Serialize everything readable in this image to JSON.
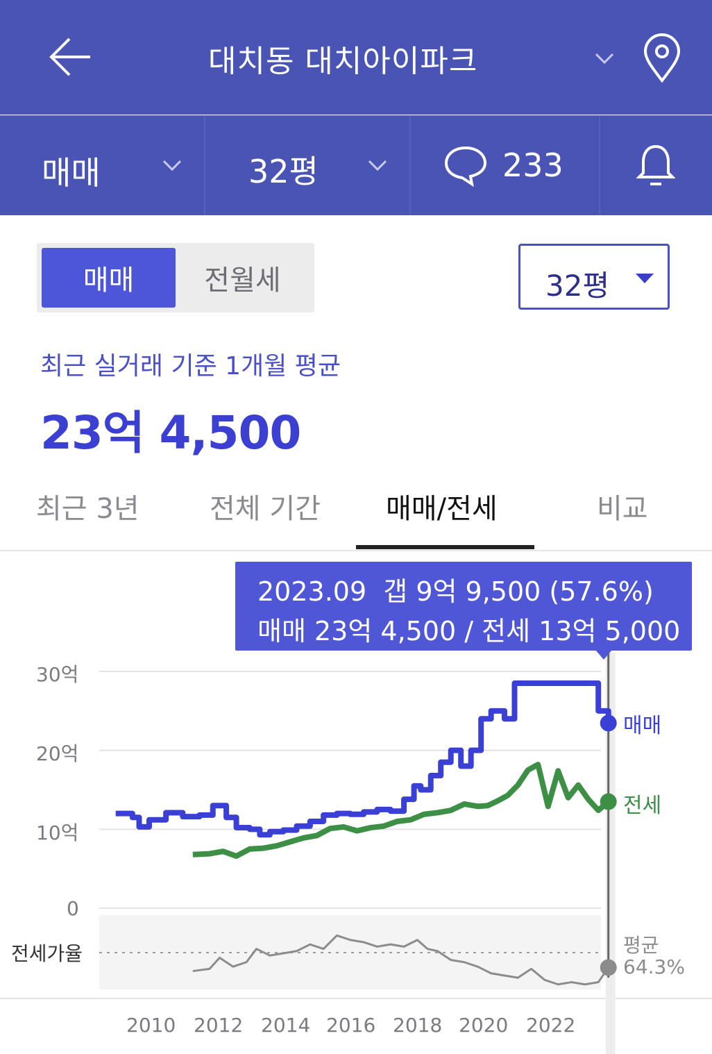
{
  "header": {
    "title": "대치동 대치아이파크",
    "back_icon": "arrow-left-icon",
    "location_icon": "map-pin-icon",
    "dropdown_icon": "chevron-down-icon"
  },
  "subbar": {
    "trade_type": "매매",
    "size": "32평",
    "comment_count": "233",
    "comment_icon": "speech-bubble-icon",
    "alarm_icon": "bell-icon"
  },
  "toggle": {
    "active": "매매",
    "inactive": "전월세"
  },
  "size_select": {
    "value": "32평"
  },
  "summary": {
    "caption": "최근 실거래 기준 1개월 평균",
    "price": "23억 4,500"
  },
  "tabs": [
    {
      "label": "최근 3년"
    },
    {
      "label": "전체 기간"
    },
    {
      "label": "매매/전세"
    },
    {
      "label": "비교"
    }
  ],
  "active_tab": "매매/전세",
  "tooltip": {
    "line1": "2023.09  갭 9억 9,500 (57.6%)",
    "line2": "매매 23억 4,500 / 전세 13억 5,000"
  },
  "colors": {
    "header_bg": "#4a54b4",
    "accent": "#4d55d8",
    "sale_line": "#3a3fd6",
    "jeonse_line": "#3d8f46",
    "ratio_line": "#8c8c8c"
  },
  "chart_data": {
    "type": "line",
    "y_unit": "억",
    "ylim": [
      0,
      30
    ],
    "yticks": [
      "30억",
      "20억",
      "10억",
      "0"
    ],
    "xticks": [
      "2010",
      "2012",
      "2014",
      "2016",
      "2018",
      "2020",
      "2022"
    ],
    "series": [
      {
        "name": "매매",
        "color": "#3a3fd6",
        "x": [
          2009.0,
          2009.5,
          2009.7,
          2010.0,
          2010.5,
          2011.0,
          2011.5,
          2011.9,
          2012.3,
          2012.6,
          2013.0,
          2013.3,
          2013.6,
          2014.0,
          2014.4,
          2014.8,
          2015.2,
          2015.6,
          2016.0,
          2016.4,
          2016.8,
          2017.2,
          2017.6,
          2017.9,
          2018.1,
          2018.4,
          2018.7,
          2019.0,
          2019.3,
          2019.6,
          2019.9,
          2020.2,
          2020.6,
          2020.9,
          2021.3,
          2021.8,
          2022.3,
          2022.8,
          2023.1,
          2023.4,
          2023.7
        ],
        "y": [
          12.0,
          11.5,
          10.3,
          11.2,
          12.1,
          11.6,
          11.8,
          13.0,
          11.5,
          10.2,
          10.0,
          9.3,
          9.7,
          9.9,
          10.4,
          11.0,
          11.8,
          12.0,
          11.9,
          12.2,
          12.5,
          12.3,
          13.8,
          15.5,
          15.0,
          16.8,
          18.5,
          20.0,
          18.0,
          20.0,
          24.0,
          25.0,
          24.0,
          28.5,
          28.5,
          28.5,
          28.5,
          28.5,
          28.5,
          25.0,
          23.45
        ]
      },
      {
        "name": "전세",
        "color": "#3d8f46",
        "x": [
          2011.3,
          2011.8,
          2012.2,
          2012.6,
          2013.0,
          2013.4,
          2013.8,
          2014.2,
          2014.6,
          2015.0,
          2015.4,
          2015.8,
          2016.2,
          2016.6,
          2017.0,
          2017.4,
          2017.8,
          2018.2,
          2018.6,
          2019.0,
          2019.4,
          2019.8,
          2020.1,
          2020.4,
          2020.7,
          2021.0,
          2021.3,
          2021.6,
          2021.9,
          2022.2,
          2022.5,
          2022.8,
          2023.1,
          2023.4,
          2023.7
        ],
        "y": [
          6.8,
          6.9,
          7.2,
          6.6,
          7.5,
          7.6,
          7.9,
          8.4,
          8.9,
          9.2,
          10.1,
          10.3,
          9.8,
          10.2,
          10.4,
          11.0,
          11.2,
          11.9,
          12.1,
          12.4,
          13.2,
          12.9,
          13.0,
          13.6,
          14.3,
          15.6,
          17.5,
          18.2,
          12.9,
          17.4,
          14.0,
          15.6,
          13.8,
          12.4,
          13.5
        ]
      },
      {
        "name": "전세가율",
        "color": "#8c8c8c",
        "x": [
          2011.3,
          2011.8,
          2012.1,
          2012.5,
          2012.9,
          2013.2,
          2013.6,
          2014.0,
          2014.4,
          2014.8,
          2015.2,
          2015.6,
          2016.0,
          2016.4,
          2016.8,
          2017.2,
          2017.6,
          2018.0,
          2018.3,
          2018.6,
          2019.0,
          2019.4,
          2019.8,
          2020.2,
          2020.6,
          2021.0,
          2021.4,
          2021.8,
          2022.2,
          2022.6,
          2023.0,
          2023.4,
          2023.7
        ],
        "y": [
          56,
          57,
          62,
          58,
          60,
          66,
          63,
          64,
          65,
          68,
          66,
          72,
          70,
          69,
          67,
          68,
          67,
          70,
          66,
          65,
          61,
          60,
          58,
          55,
          54,
          53,
          57,
          52,
          50,
          51,
          50,
          51,
          57.6
        ]
      }
    ],
    "ratio_average_label": "평균",
    "ratio_average_value": "64.3%",
    "ratio_label": "전세가율",
    "cursor_x": 2023.7
  }
}
